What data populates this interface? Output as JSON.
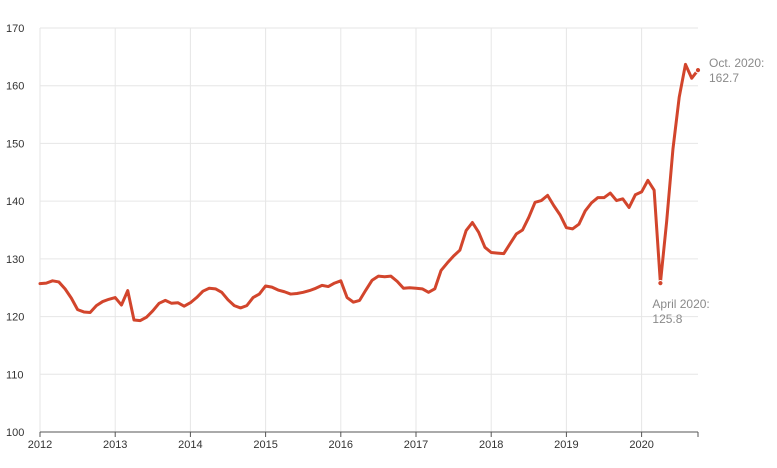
{
  "colors": {
    "line": "#d2452c",
    "grid": "#e6e6e6",
    "annotation": "#8a8a8a"
  },
  "chart_data": {
    "type": "line",
    "title": "",
    "xlabel": "",
    "ylabel": "",
    "ylim": [
      100,
      170
    ],
    "xlim": [
      2012,
      2020.75
    ],
    "grid": "on",
    "y_ticks": [
      100,
      110,
      120,
      130,
      140,
      150,
      160,
      170
    ],
    "x_ticks": [
      "2012",
      "2013",
      "2014",
      "2015",
      "2016",
      "2017",
      "2018",
      "2019",
      "2020"
    ],
    "series": [
      {
        "points": [
          [
            "2012-01",
            125.7
          ],
          [
            "2012-02",
            125.8
          ],
          [
            "2012-03",
            126.2
          ],
          [
            "2012-04",
            126.0
          ],
          [
            "2012-05",
            124.8
          ],
          [
            "2012-06",
            123.2
          ],
          [
            "2012-07",
            121.2
          ],
          [
            "2012-08",
            120.8
          ],
          [
            "2012-09",
            120.7
          ],
          [
            "2012-10",
            121.9
          ],
          [
            "2012-11",
            122.6
          ],
          [
            "2012-12",
            123.0
          ],
          [
            "2013-01",
            123.3
          ],
          [
            "2013-02",
            122.0
          ],
          [
            "2013-03",
            124.5
          ],
          [
            "2013-04",
            119.4
          ],
          [
            "2013-05",
            119.3
          ],
          [
            "2013-06",
            119.9
          ],
          [
            "2013-07",
            121.0
          ],
          [
            "2013-08",
            122.3
          ],
          [
            "2013-09",
            122.8
          ],
          [
            "2013-10",
            122.3
          ],
          [
            "2013-11",
            122.4
          ],
          [
            "2013-12",
            121.8
          ],
          [
            "2014-01",
            122.4
          ],
          [
            "2014-02",
            123.3
          ],
          [
            "2014-03",
            124.4
          ],
          [
            "2014-04",
            124.9
          ],
          [
            "2014-05",
            124.8
          ],
          [
            "2014-06",
            124.2
          ],
          [
            "2014-07",
            122.9
          ],
          [
            "2014-08",
            121.9
          ],
          [
            "2014-09",
            121.5
          ],
          [
            "2014-10",
            121.9
          ],
          [
            "2014-11",
            123.3
          ],
          [
            "2014-12",
            123.9
          ],
          [
            "2015-01",
            125.3
          ],
          [
            "2015-02",
            125.1
          ],
          [
            "2015-03",
            124.6
          ],
          [
            "2015-04",
            124.3
          ],
          [
            "2015-05",
            123.9
          ],
          [
            "2015-06",
            124.0
          ],
          [
            "2015-07",
            124.2
          ],
          [
            "2015-08",
            124.5
          ],
          [
            "2015-09",
            124.9
          ],
          [
            "2015-10",
            125.4
          ],
          [
            "2015-11",
            125.2
          ],
          [
            "2015-12",
            125.8
          ],
          [
            "2016-01",
            126.2
          ],
          [
            "2016-02",
            123.3
          ],
          [
            "2016-03",
            122.5
          ],
          [
            "2016-04",
            122.8
          ],
          [
            "2016-05",
            124.6
          ],
          [
            "2016-06",
            126.3
          ],
          [
            "2016-07",
            127.0
          ],
          [
            "2016-08",
            126.9
          ],
          [
            "2016-09",
            127.0
          ],
          [
            "2016-10",
            126.1
          ],
          [
            "2016-11",
            124.9
          ],
          [
            "2016-12",
            125.0
          ],
          [
            "2017-01",
            124.9
          ],
          [
            "2017-02",
            124.8
          ],
          [
            "2017-03",
            124.2
          ],
          [
            "2017-04",
            124.8
          ],
          [
            "2017-05",
            128.0
          ],
          [
            "2017-06",
            129.3
          ],
          [
            "2017-07",
            130.5
          ],
          [
            "2017-08",
            131.5
          ],
          [
            "2017-09",
            134.9
          ],
          [
            "2017-10",
            136.3
          ],
          [
            "2017-11",
            134.6
          ],
          [
            "2017-12",
            132.0
          ],
          [
            "2018-01",
            131.1
          ],
          [
            "2018-02",
            131.0
          ],
          [
            "2018-03",
            130.9
          ],
          [
            "2018-04",
            132.6
          ],
          [
            "2018-05",
            134.3
          ],
          [
            "2018-06",
            135.0
          ],
          [
            "2018-07",
            137.2
          ],
          [
            "2018-08",
            139.8
          ],
          [
            "2018-09",
            140.1
          ],
          [
            "2018-10",
            141.0
          ],
          [
            "2018-11",
            139.2
          ],
          [
            "2018-12",
            137.6
          ],
          [
            "2019-01",
            135.4
          ],
          [
            "2019-02",
            135.2
          ],
          [
            "2019-03",
            136.0
          ],
          [
            "2019-04",
            138.3
          ],
          [
            "2019-05",
            139.7
          ],
          [
            "2019-06",
            140.6
          ],
          [
            "2019-07",
            140.6
          ],
          [
            "2019-08",
            141.4
          ],
          [
            "2019-09",
            140.1
          ],
          [
            "2019-10",
            140.4
          ],
          [
            "2019-11",
            138.9
          ],
          [
            "2019-12",
            141.1
          ],
          [
            "2020-01",
            141.6
          ],
          [
            "2020-02",
            143.6
          ],
          [
            "2020-03",
            141.9
          ],
          [
            "2020-04",
            125.8
          ],
          [
            "2020-05",
            136.5
          ],
          [
            "2020-06",
            149.0
          ],
          [
            "2020-07",
            158.0
          ],
          [
            "2020-08",
            163.7
          ],
          [
            "2020-09",
            161.3
          ],
          [
            "2020-10",
            162.7
          ]
        ]
      }
    ],
    "annotations": [
      {
        "date": "2020-10",
        "value": 162.7,
        "label_line1": "Oct. 2020:",
        "label_line2": "162.7",
        "position": "right"
      },
      {
        "date": "2020-04",
        "value": 125.8,
        "label_line1": "April 2020:",
        "label_line2": "125.8",
        "position": "below"
      }
    ]
  }
}
